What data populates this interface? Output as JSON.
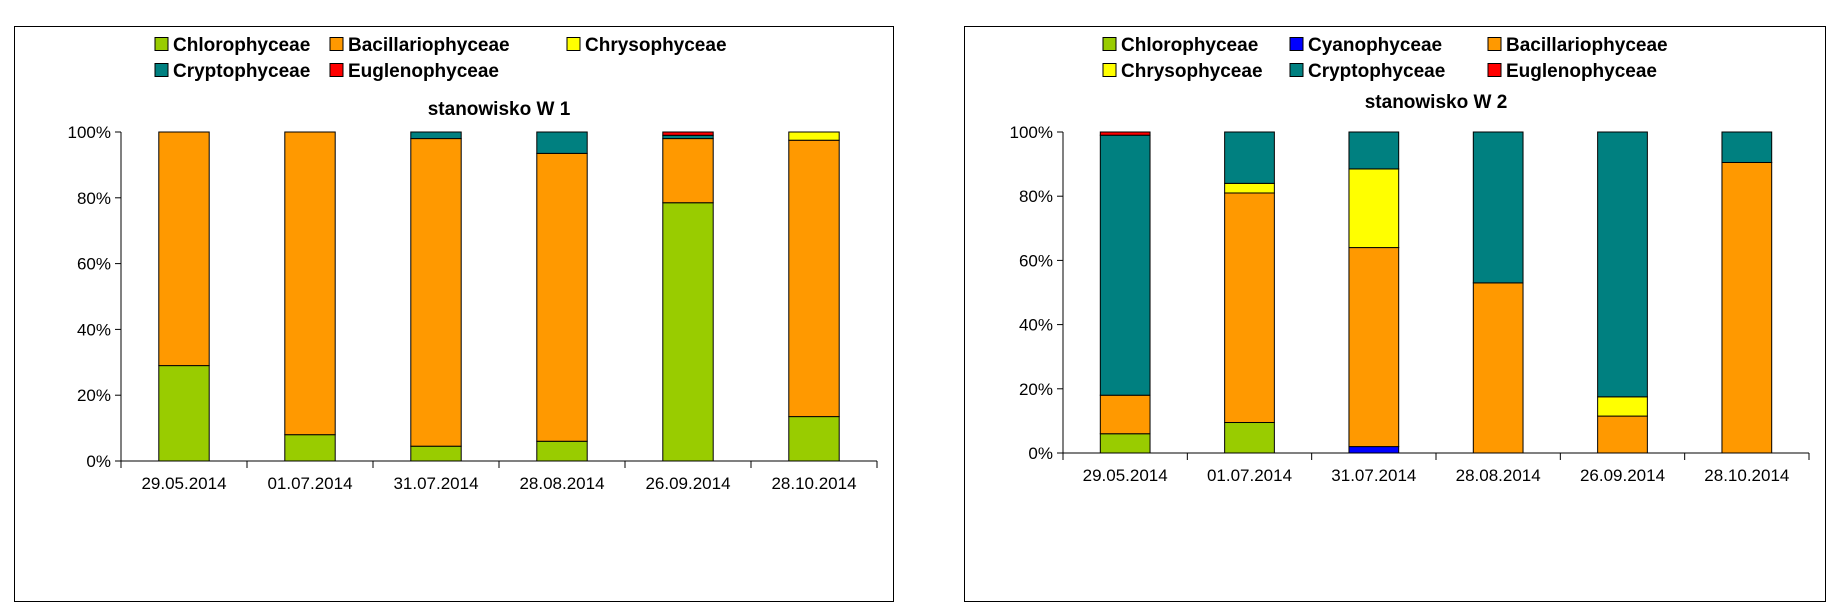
{
  "chart_data": [
    {
      "type": "bar",
      "stacked": "percent",
      "title": "stanowisko W 1",
      "categories": [
        "29.05.2014",
        "01.07.2014",
        "31.07.2014",
        "28.08.2014",
        "26.09.2014",
        "28.10.2014"
      ],
      "yticks": [
        "0%",
        "20%",
        "40%",
        "60%",
        "80%",
        "100%"
      ],
      "ylim": [
        0,
        100
      ],
      "legend_position": "top",
      "legend_columns": 3,
      "series": [
        {
          "name": "Chlorophyceae",
          "color": "#99CC00",
          "values": [
            29,
            8,
            4.5,
            6,
            78.5,
            13.5
          ]
        },
        {
          "name": "Bacillariophyceae",
          "color": "#FF9900",
          "values": [
            71,
            92,
            93.5,
            87.5,
            19.5,
            84
          ]
        },
        {
          "name": "Chrysophyceae",
          "color": "#FFFF00",
          "values": [
            0,
            0,
            0,
            0,
            0,
            2.5
          ]
        },
        {
          "name": "Cryptophyceae",
          "color": "#008080",
          "values": [
            0,
            0,
            2,
            6.5,
            1,
            0
          ]
        },
        {
          "name": "Euglenophyceae",
          "color": "#FF0000",
          "values": [
            0,
            0,
            0,
            0,
            1,
            0
          ]
        }
      ]
    },
    {
      "type": "bar",
      "stacked": "percent",
      "title": "stanowisko W 2",
      "categories": [
        "29.05.2014",
        "01.07.2014",
        "31.07.2014",
        "28.08.2014",
        "26.09.2014",
        "28.10.2014"
      ],
      "yticks": [
        "0%",
        "20%",
        "40%",
        "60%",
        "80%",
        "100%"
      ],
      "ylim": [
        0,
        100
      ],
      "legend_position": "top",
      "legend_columns": 3,
      "series": [
        {
          "name": "Chlorophyceae",
          "color": "#99CC00",
          "values": [
            6,
            9.5,
            0,
            0,
            0,
            0
          ]
        },
        {
          "name": "Cyanophyceae",
          "color": "#0000FF",
          "values": [
            0,
            0,
            2,
            0,
            0,
            0
          ]
        },
        {
          "name": "Bacillariophyceae",
          "color": "#FF9900",
          "values": [
            12,
            71.5,
            62,
            53,
            11.5,
            90.5
          ]
        },
        {
          "name": "Chrysophyceae",
          "color": "#FFFF00",
          "values": [
            0,
            3,
            24.5,
            0,
            6,
            0
          ]
        },
        {
          "name": "Cryptophyceae",
          "color": "#008080",
          "values": [
            81,
            16,
            11.5,
            47,
            82.5,
            9.5
          ]
        },
        {
          "name": "Euglenophyceae",
          "color": "#FF0000",
          "values": [
            1,
            0,
            0,
            0,
            0,
            0
          ]
        }
      ]
    }
  ]
}
